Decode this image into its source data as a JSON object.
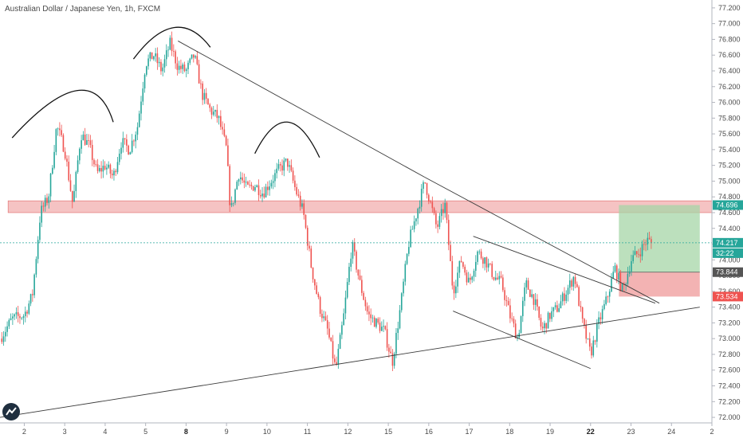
{
  "title": "Australian Dollar / Japanese Yen, 1h, FXCM",
  "colors": {
    "up": "#26a69a",
    "down": "#ef5350",
    "target_zone": "#a5d6a7",
    "stop_zone": "#ef9a9a",
    "resistance_zone": "#f0a3a3",
    "trendline": "#3a3a3a",
    "price_line": "#26a69a",
    "current_price_tag": "#26a69a",
    "target_tag": "#26a69a",
    "entry_tag": "#555555",
    "stop_tag": "#ef5350"
  },
  "chart_data": {
    "type": "candlestick",
    "symbol": "Australian Dollar / Japanese Yen",
    "interval": "1h",
    "source": "FXCM",
    "ylim": [
      71.93,
      77.3
    ],
    "yticks": [
      "77.200",
      "77.000",
      "76.800",
      "76.600",
      "76.400",
      "76.200",
      "76.000",
      "75.800",
      "75.600",
      "75.400",
      "75.200",
      "75.000",
      "74.800",
      "74.600",
      "74.400",
      "74.200",
      "74.000",
      "73.800",
      "73.600",
      "73.400",
      "73.200",
      "73.000",
      "72.800",
      "72.600",
      "72.400",
      "72.200",
      "72.000"
    ],
    "xticks": [
      {
        "label": "2",
        "t": 0.6,
        "bold": false
      },
      {
        "label": "3",
        "t": 1.6,
        "bold": false
      },
      {
        "label": "4",
        "t": 2.6,
        "bold": false
      },
      {
        "label": "5",
        "t": 3.6,
        "bold": false
      },
      {
        "label": "8",
        "t": 4.6,
        "bold": true
      },
      {
        "label": "9",
        "t": 5.6,
        "bold": false
      },
      {
        "label": "10",
        "t": 6.6,
        "bold": false
      },
      {
        "label": "11",
        "t": 7.6,
        "bold": false
      },
      {
        "label": "12",
        "t": 8.6,
        "bold": false
      },
      {
        "label": "15",
        "t": 9.6,
        "bold": false
      },
      {
        "label": "16",
        "t": 10.6,
        "bold": false
      },
      {
        "label": "17",
        "t": 11.6,
        "bold": false
      },
      {
        "label": "18",
        "t": 12.6,
        "bold": false
      },
      {
        "label": "19",
        "t": 13.6,
        "bold": false
      },
      {
        "label": "22",
        "t": 14.6,
        "bold": true
      },
      {
        "label": "23",
        "t": 15.6,
        "bold": false
      },
      {
        "label": "24",
        "t": 16.6,
        "bold": false
      },
      {
        "label": "2",
        "t": 17.6,
        "bold": false
      }
    ],
    "price_path": [
      [
        0.0,
        73.0
      ],
      [
        0.3,
        73.25
      ],
      [
        0.6,
        73.3
      ],
      [
        0.8,
        73.55
      ],
      [
        1.0,
        74.6
      ],
      [
        1.2,
        74.8
      ],
      [
        1.4,
        75.7
      ],
      [
        1.6,
        75.4
      ],
      [
        1.8,
        74.7
      ],
      [
        2.0,
        75.6
      ],
      [
        2.2,
        75.45
      ],
      [
        2.4,
        75.1
      ],
      [
        2.6,
        75.2
      ],
      [
        2.8,
        75.05
      ],
      [
        3.0,
        75.5
      ],
      [
        3.2,
        75.4
      ],
      [
        3.4,
        75.7
      ],
      [
        3.6,
        76.5
      ],
      [
        3.8,
        76.6
      ],
      [
        4.0,
        76.4
      ],
      [
        4.2,
        76.75
      ],
      [
        4.4,
        76.45
      ],
      [
        4.6,
        76.4
      ],
      [
        4.8,
        76.6
      ],
      [
        5.0,
        76.1
      ],
      [
        5.2,
        75.9
      ],
      [
        5.4,
        75.8
      ],
      [
        5.6,
        75.4
      ],
      [
        5.7,
        74.6
      ],
      [
        5.9,
        75.1
      ],
      [
        6.1,
        74.9
      ],
      [
        6.3,
        74.95
      ],
      [
        6.5,
        74.85
      ],
      [
        6.7,
        75.0
      ],
      [
        6.9,
        75.15
      ],
      [
        7.1,
        75.25
      ],
      [
        7.3,
        74.9
      ],
      [
        7.5,
        74.6
      ],
      [
        7.7,
        73.9
      ],
      [
        7.9,
        73.4
      ],
      [
        8.1,
        73.1
      ],
      [
        8.3,
        72.6
      ],
      [
        8.5,
        73.3
      ],
      [
        8.7,
        74.2
      ],
      [
        8.9,
        73.7
      ],
      [
        9.1,
        73.3
      ],
      [
        9.3,
        73.2
      ],
      [
        9.5,
        73.1
      ],
      [
        9.7,
        72.7
      ],
      [
        9.9,
        73.4
      ],
      [
        10.1,
        74.2
      ],
      [
        10.3,
        74.6
      ],
      [
        10.5,
        75.0
      ],
      [
        10.6,
        74.8
      ],
      [
        10.8,
        74.4
      ],
      [
        11.0,
        74.7
      ],
      [
        11.2,
        73.6
      ],
      [
        11.4,
        74.0
      ],
      [
        11.6,
        73.7
      ],
      [
        11.8,
        74.1
      ],
      [
        12.0,
        74.0
      ],
      [
        12.2,
        73.8
      ],
      [
        12.4,
        73.7
      ],
      [
        12.6,
        73.3
      ],
      [
        12.8,
        73.0
      ],
      [
        13.0,
        73.7
      ],
      [
        13.2,
        73.5
      ],
      [
        13.4,
        73.1
      ],
      [
        13.6,
        73.3
      ],
      [
        13.8,
        73.4
      ],
      [
        14.0,
        73.6
      ],
      [
        14.2,
        73.8
      ],
      [
        14.4,
        73.2
      ],
      [
        14.6,
        72.8
      ],
      [
        14.8,
        73.2
      ],
      [
        15.0,
        73.5
      ],
      [
        15.2,
        73.9
      ],
      [
        15.4,
        73.6
      ],
      [
        15.6,
        74.0
      ],
      [
        15.8,
        74.1
      ],
      [
        16.0,
        74.25
      ],
      [
        16.1,
        74.217
      ]
    ],
    "zones": {
      "resistance": [
        74.6,
        74.75
      ],
      "target": [
        73.844,
        74.696
      ],
      "stop": [
        73.534,
        73.844
      ]
    },
    "price_tags": [
      {
        "label": "74.696",
        "kind": "target"
      },
      {
        "label": "74.217",
        "kind": "current"
      },
      {
        "label": "32:22",
        "kind": "countdown"
      },
      {
        "label": "73.844",
        "kind": "entry"
      },
      {
        "label": "73.534",
        "kind": "stop"
      }
    ],
    "trendlines": [
      {
        "from": [
          4.4,
          76.78
        ],
        "to": [
          10.5,
          75.05
        ]
      },
      {
        "from": [
          10.5,
          75.05
        ],
        "to": [
          16.3,
          73.45
        ]
      },
      {
        "from": [
          0.0,
          72.0
        ],
        "to": [
          17.3,
          73.4
        ]
      },
      {
        "from": [
          11.7,
          74.3
        ],
        "to": [
          16.2,
          73.45
        ]
      },
      {
        "from": [
          11.2,
          73.35
        ],
        "to": [
          14.6,
          72.62
        ]
      }
    ],
    "arcs": [
      {
        "from": [
          0.3,
          75.55
        ],
        "peak": [
          1.9,
          76.15
        ],
        "to": [
          2.8,
          75.75
        ]
      },
      {
        "from": [
          3.3,
          76.55
        ],
        "peak": [
          4.3,
          76.95
        ],
        "to": [
          5.2,
          76.7
        ]
      },
      {
        "from": [
          6.3,
          75.35
        ],
        "peak": [
          7.1,
          75.75
        ],
        "to": [
          7.9,
          75.3
        ]
      }
    ]
  }
}
